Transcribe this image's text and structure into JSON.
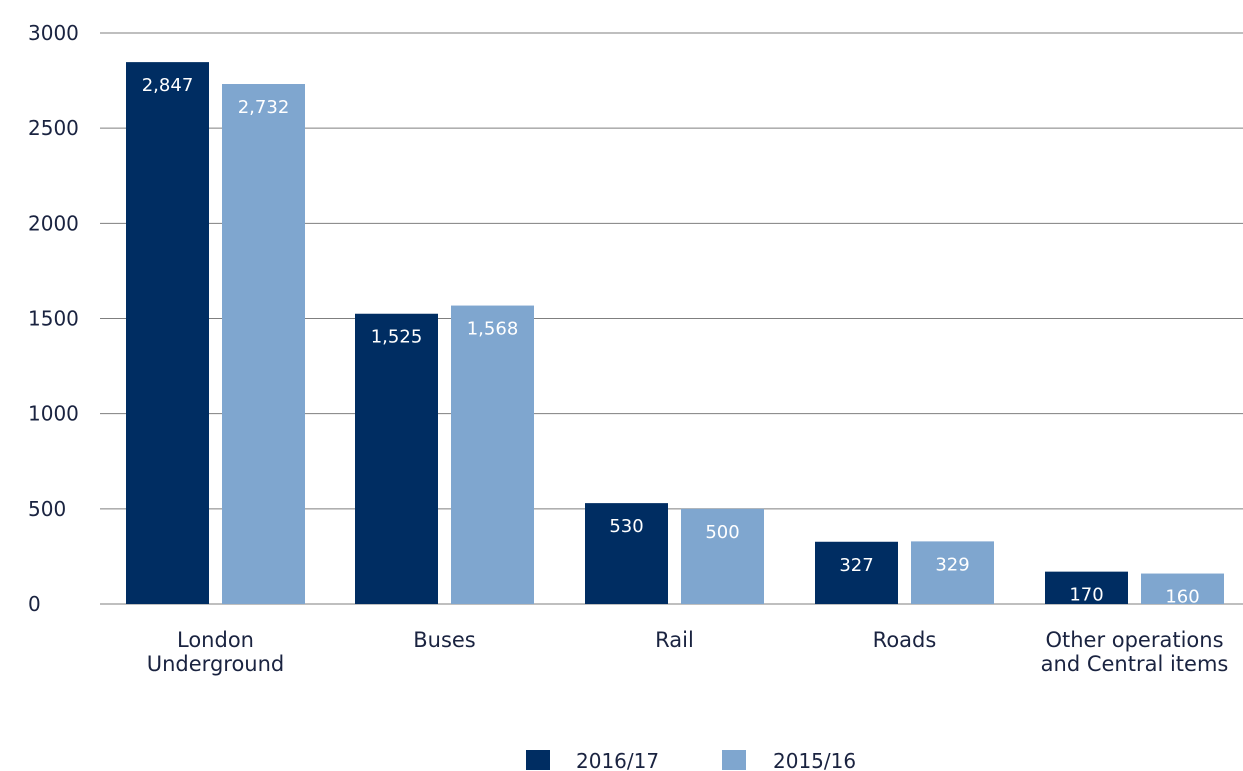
{
  "chart_data": {
    "type": "bar",
    "categories": [
      [
        "London",
        "Underground"
      ],
      [
        "Buses"
      ],
      [
        "Rail"
      ],
      [
        "Roads"
      ],
      [
        "Other operations",
        "and Central items"
      ]
    ],
    "series": [
      {
        "name": "2016/17",
        "values": [
          2847,
          1525,
          530,
          327,
          170
        ],
        "labels": [
          "2,847",
          "1,525",
          "530",
          "327",
          "170"
        ],
        "color": "#002d62",
        "label_color": "#ffffff"
      },
      {
        "name": "2015/16",
        "values": [
          2732,
          1568,
          500,
          329,
          160
        ],
        "labels": [
          "2,732",
          "1,568",
          "500",
          "329",
          "160"
        ],
        "color": "#7fa6cf",
        "label_color": "#e8f0f8"
      }
    ],
    "y_ticks": [
      0,
      500,
      1000,
      1500,
      2000,
      2500,
      3000
    ],
    "y_tick_labels": [
      "0",
      "500",
      "1000",
      "1500",
      "2000",
      "2500",
      "3000"
    ],
    "ylim": [
      0,
      3000
    ],
    "grid": true,
    "legend": "bottom-center",
    "title": "",
    "xlabel": "",
    "ylabel": ""
  }
}
